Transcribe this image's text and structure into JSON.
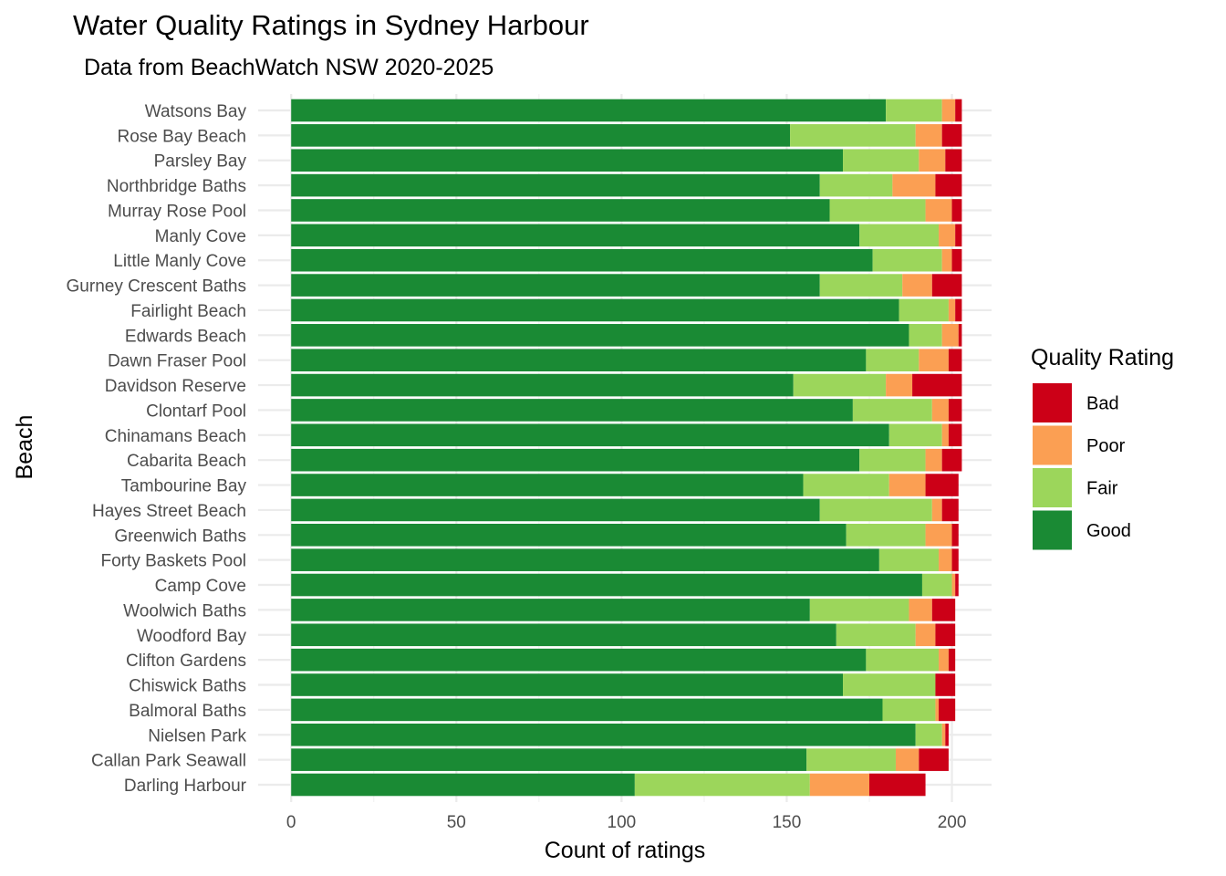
{
  "chart_data": {
    "type": "bar",
    "orientation": "horizontal",
    "stacked": true,
    "title": "Water Quality Ratings in Sydney Harbour",
    "subtitle": "Data from BeachWatch NSW 2020-2025",
    "xlabel": "Count of ratings",
    "ylabel": "Beach",
    "xlim": [
      -10,
      212
    ],
    "x_ticks": [
      0,
      50,
      100,
      150,
      200
    ],
    "x_tick_labels": [
      "0",
      "50",
      "100",
      "150",
      "200"
    ],
    "grid": true,
    "legend": {
      "title": "Quality Rating",
      "position": "right",
      "entries": [
        "Bad",
        "Poor",
        "Fair",
        "Good"
      ]
    },
    "colors": {
      "Good": "#1a8a34",
      "Fair": "#9cd65b",
      "Poor": "#fb9f53",
      "Bad": "#cc0017"
    },
    "categories": [
      "Watsons Bay",
      "Rose Bay Beach",
      "Parsley Bay",
      "Northbridge Baths",
      "Murray Rose Pool",
      "Manly Cove",
      "Little Manly Cove",
      "Gurney Crescent Baths",
      "Fairlight Beach",
      "Edwards Beach",
      "Dawn Fraser Pool",
      "Davidson Reserve",
      "Clontarf Pool",
      "Chinamans Beach",
      "Cabarita Beach",
      "Tambourine Bay",
      "Hayes Street Beach",
      "Greenwich Baths",
      "Forty Baskets Pool",
      "Camp Cove",
      "Woolwich Baths",
      "Woodford Bay",
      "Clifton Gardens",
      "Chiswick Baths",
      "Balmoral Baths",
      "Nielsen Park",
      "Callan Park Seawall",
      "Darling Harbour"
    ],
    "series": [
      {
        "name": "Good",
        "values": [
          180,
          151,
          167,
          160,
          163,
          172,
          176,
          160,
          184,
          187,
          174,
          152,
          170,
          181,
          172,
          155,
          160,
          168,
          178,
          191,
          157,
          165,
          174,
          167,
          179,
          189,
          156,
          104
        ]
      },
      {
        "name": "Fair",
        "values": [
          17,
          38,
          23,
          22,
          29,
          24,
          21,
          25,
          15,
          10,
          16,
          28,
          24,
          16,
          20,
          26,
          34,
          24,
          18,
          9,
          30,
          24,
          22,
          28,
          16,
          8,
          27,
          53
        ]
      },
      {
        "name": "Poor",
        "values": [
          4,
          8,
          8,
          13,
          8,
          5,
          3,
          9,
          2,
          5,
          9,
          8,
          5,
          2,
          5,
          11,
          3,
          8,
          4,
          1,
          7,
          6,
          3,
          0,
          1,
          1,
          7,
          18
        ]
      },
      {
        "name": "Bad",
        "values": [
          2,
          6,
          5,
          8,
          3,
          2,
          3,
          9,
          2,
          1,
          4,
          15,
          4,
          4,
          6,
          10,
          5,
          2,
          2,
          1,
          7,
          6,
          2,
          6,
          5,
          1,
          9,
          17
        ]
      }
    ]
  }
}
